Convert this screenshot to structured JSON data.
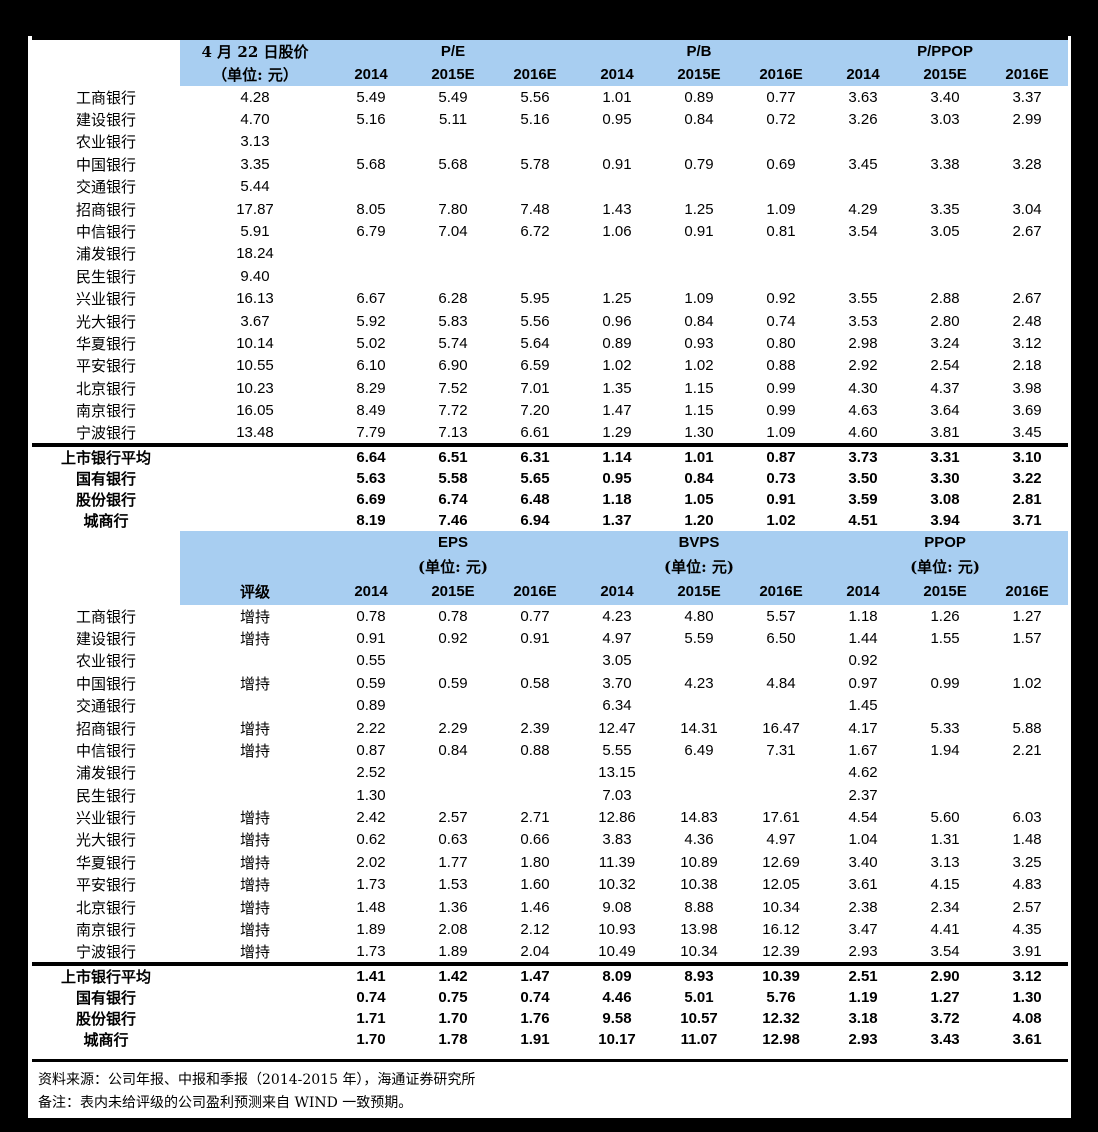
{
  "colors": {
    "header_blue": "#A8CEF1",
    "page_background": "#000000",
    "sheet_background": "#ffffff"
  },
  "table1": {
    "price_header": "4 月 22 日股价",
    "price_unit": "（单位: 元）",
    "groups": [
      "P/E",
      "P/B",
      "P/PPOP"
    ],
    "years": [
      "2014",
      "2015E",
      "2016E"
    ],
    "rows": [
      [
        "工商银行",
        "4.28",
        "5.49",
        "5.49",
        "5.56",
        "1.01",
        "0.89",
        "0.77",
        "3.63",
        "3.40",
        "3.37"
      ],
      [
        "建设银行",
        "4.70",
        "5.16",
        "5.11",
        "5.16",
        "0.95",
        "0.84",
        "0.72",
        "3.26",
        "3.03",
        "2.99"
      ],
      [
        "农业银行",
        "3.13",
        "",
        "",
        "",
        "",
        "",
        "",
        "",
        "",
        ""
      ],
      [
        "中国银行",
        "3.35",
        "5.68",
        "5.68",
        "5.78",
        "0.91",
        "0.79",
        "0.69",
        "3.45",
        "3.38",
        "3.28"
      ],
      [
        "交通银行",
        "5.44",
        "",
        "",
        "",
        "",
        "",
        "",
        "",
        "",
        ""
      ],
      [
        "招商银行",
        "17.87",
        "8.05",
        "7.80",
        "7.48",
        "1.43",
        "1.25",
        "1.09",
        "4.29",
        "3.35",
        "3.04"
      ],
      [
        "中信银行",
        "5.91",
        "6.79",
        "7.04",
        "6.72",
        "1.06",
        "0.91",
        "0.81",
        "3.54",
        "3.05",
        "2.67"
      ],
      [
        "浦发银行",
        "18.24",
        "",
        "",
        "",
        "",
        "",
        "",
        "",
        "",
        ""
      ],
      [
        "民生银行",
        "9.40",
        "",
        "",
        "",
        "",
        "",
        "",
        "",
        "",
        ""
      ],
      [
        "兴业银行",
        "16.13",
        "6.67",
        "6.28",
        "5.95",
        "1.25",
        "1.09",
        "0.92",
        "3.55",
        "2.88",
        "2.67"
      ],
      [
        "光大银行",
        "3.67",
        "5.92",
        "5.83",
        "5.56",
        "0.96",
        "0.84",
        "0.74",
        "3.53",
        "2.80",
        "2.48"
      ],
      [
        "华夏银行",
        "10.14",
        "5.02",
        "5.74",
        "5.64",
        "0.89",
        "0.93",
        "0.80",
        "2.98",
        "3.24",
        "3.12"
      ],
      [
        "平安银行",
        "10.55",
        "6.10",
        "6.90",
        "6.59",
        "1.02",
        "1.02",
        "0.88",
        "2.92",
        "2.54",
        "2.18"
      ],
      [
        "北京银行",
        "10.23",
        "8.29",
        "7.52",
        "7.01",
        "1.35",
        "1.15",
        "0.99",
        "4.30",
        "4.37",
        "3.98"
      ],
      [
        "南京银行",
        "16.05",
        "8.49",
        "7.72",
        "7.20",
        "1.47",
        "1.15",
        "0.99",
        "4.63",
        "3.64",
        "3.69"
      ],
      [
        "宁波银行",
        "13.48",
        "7.79",
        "7.13",
        "6.61",
        "1.29",
        "1.30",
        "1.09",
        "4.60",
        "3.81",
        "3.45"
      ]
    ],
    "summary": [
      [
        "上市银行平均",
        "",
        "6.64",
        "6.51",
        "6.31",
        "1.14",
        "1.01",
        "0.87",
        "3.73",
        "3.31",
        "3.10"
      ],
      [
        "国有银行",
        "",
        "5.63",
        "5.58",
        "5.65",
        "0.95",
        "0.84",
        "0.73",
        "3.50",
        "3.30",
        "3.22"
      ],
      [
        "股份银行",
        "",
        "6.69",
        "6.74",
        "6.48",
        "1.18",
        "1.05",
        "0.91",
        "3.59",
        "3.08",
        "2.81"
      ],
      [
        "城商行",
        "",
        "8.19",
        "7.46",
        "6.94",
        "1.37",
        "1.20",
        "1.02",
        "4.51",
        "3.94",
        "3.71"
      ]
    ]
  },
  "table2": {
    "rating_header": "评级",
    "groups": [
      "EPS",
      "BVPS",
      "PPOP"
    ],
    "unit": "(单位: 元)",
    "years": [
      "2014",
      "2015E",
      "2016E"
    ],
    "rows": [
      [
        "工商银行",
        "增持",
        "0.78",
        "0.78",
        "0.77",
        "4.23",
        "4.80",
        "5.57",
        "1.18",
        "1.26",
        "1.27"
      ],
      [
        "建设银行",
        "增持",
        "0.91",
        "0.92",
        "0.91",
        "4.97",
        "5.59",
        "6.50",
        "1.44",
        "1.55",
        "1.57"
      ],
      [
        "农业银行",
        "",
        "0.55",
        "",
        "",
        "3.05",
        "",
        "",
        "0.92",
        "",
        ""
      ],
      [
        "中国银行",
        "增持",
        "0.59",
        "0.59",
        "0.58",
        "3.70",
        "4.23",
        "4.84",
        "0.97",
        "0.99",
        "1.02"
      ],
      [
        "交通银行",
        "",
        "0.89",
        "",
        "",
        "6.34",
        "",
        "",
        "1.45",
        "",
        ""
      ],
      [
        "招商银行",
        "增持",
        "2.22",
        "2.29",
        "2.39",
        "12.47",
        "14.31",
        "16.47",
        "4.17",
        "5.33",
        "5.88"
      ],
      [
        "中信银行",
        "增持",
        "0.87",
        "0.84",
        "0.88",
        "5.55",
        "6.49",
        "7.31",
        "1.67",
        "1.94",
        "2.21"
      ],
      [
        "浦发银行",
        "",
        "2.52",
        "",
        "",
        "13.15",
        "",
        "",
        "4.62",
        "",
        ""
      ],
      [
        "民生银行",
        "",
        "1.30",
        "",
        "",
        "7.03",
        "",
        "",
        "2.37",
        "",
        ""
      ],
      [
        "兴业银行",
        "增持",
        "2.42",
        "2.57",
        "2.71",
        "12.86",
        "14.83",
        "17.61",
        "4.54",
        "5.60",
        "6.03"
      ],
      [
        "光大银行",
        "增持",
        "0.62",
        "0.63",
        "0.66",
        "3.83",
        "4.36",
        "4.97",
        "1.04",
        "1.31",
        "1.48"
      ],
      [
        "华夏银行",
        "增持",
        "2.02",
        "1.77",
        "1.80",
        "11.39",
        "10.89",
        "12.69",
        "3.40",
        "3.13",
        "3.25"
      ],
      [
        "平安银行",
        "增持",
        "1.73",
        "1.53",
        "1.60",
        "10.32",
        "10.38",
        "12.05",
        "3.61",
        "4.15",
        "4.83"
      ],
      [
        "北京银行",
        "增持",
        "1.48",
        "1.36",
        "1.46",
        "9.08",
        "8.88",
        "10.34",
        "2.38",
        "2.34",
        "2.57"
      ],
      [
        "南京银行",
        "增持",
        "1.89",
        "2.08",
        "2.12",
        "10.93",
        "13.98",
        "16.12",
        "3.47",
        "4.41",
        "4.35"
      ],
      [
        "宁波银行",
        "增持",
        "1.73",
        "1.89",
        "2.04",
        "10.49",
        "10.34",
        "12.39",
        "2.93",
        "3.54",
        "3.91"
      ]
    ],
    "summary": [
      [
        "上市银行平均",
        "",
        "1.41",
        "1.42",
        "1.47",
        "8.09",
        "8.93",
        "10.39",
        "2.51",
        "2.90",
        "3.12"
      ],
      [
        "国有银行",
        "",
        "0.74",
        "0.75",
        "0.74",
        "4.46",
        "5.01",
        "5.76",
        "1.19",
        "1.27",
        "1.30"
      ],
      [
        "股份银行",
        "",
        "1.71",
        "1.70",
        "1.76",
        "9.58",
        "10.57",
        "12.32",
        "3.18",
        "3.72",
        "4.08"
      ],
      [
        "城商行",
        "",
        "1.70",
        "1.78",
        "1.91",
        "10.17",
        "11.07",
        "12.98",
        "2.93",
        "3.43",
        "3.61"
      ]
    ]
  },
  "footer": {
    "source": "资料来源：公司年报、中报和季报（2014-2015 年），海通证券研究所",
    "note": "备注：表内未给评级的公司盈利预测来自 WIND 一致预期。"
  }
}
